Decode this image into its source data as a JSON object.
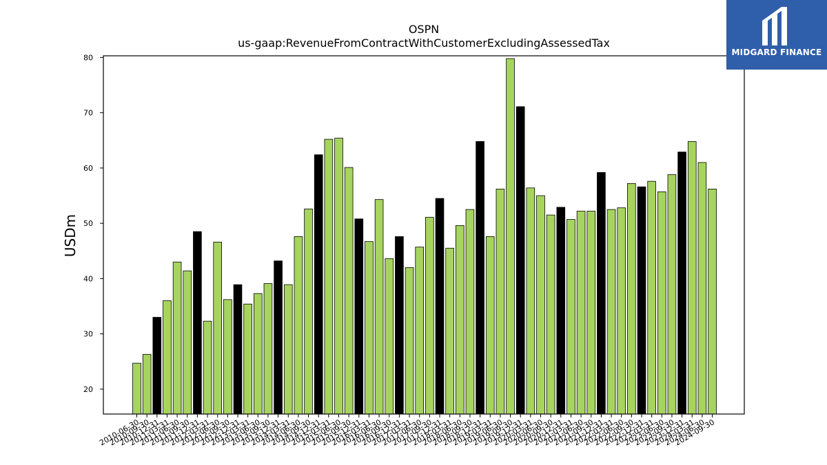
{
  "logo": {
    "text": "MIDGARD FINANCE",
    "bg_color": "#2f5eab"
  },
  "chart_data": {
    "type": "bar",
    "title": "OSPN",
    "subtitle": "us-gaap:RevenueFromContractWithCustomerExcludingAssessedTax",
    "ylabel": "USDm",
    "xlabel": "",
    "ylim": [
      15.5,
      80.3
    ],
    "yticks": [
      20,
      30,
      40,
      50,
      60,
      70,
      80
    ],
    "grid": false,
    "colors": {
      "quarter": "#a6d45f",
      "fiscal_year_end": "#000000",
      "edge": "#000000"
    },
    "tick_labels_shown": [
      "2010-06-30",
      "2010-09-30",
      "2010-12-31",
      "2011-03-31",
      "2011-06-30",
      "2011-09-30",
      "2011-12-31",
      "2012-03-31",
      "2012-06-30",
      "2012-09-30",
      "2012-12-31",
      "2013-03-31",
      "2013-06-30",
      "2013-09-30",
      "2013-12-31",
      "2014-03-31",
      "2014-06-30",
      "2014-09-30",
      "2014-12-31",
      "2015-03-31",
      "2015-06-30",
      "2015-09-30",
      "2015-12-31",
      "2016-03-31",
      "2016-06-30",
      "2016-09-30",
      "2016-12-31",
      "2017-03-31",
      "2017-06-30",
      "2017-09-30",
      "2017-12-31",
      "2018-03-31",
      "2018-06-30",
      "2018-09-30",
      "2018-12-31",
      "2019-03-31",
      "2019-06-30",
      "2019-09-30",
      "2019-12-31",
      "2020-03-31",
      "2020-06-30",
      "2020-09-30",
      "2020-12-31",
      "2021-03-31",
      "2021-06-30",
      "2021-09-30",
      "2021-12-31",
      "2022-03-31",
      "2022-06-30",
      "2022-09-30",
      "2022-12-31",
      "2023-03-31",
      "2023-06-30",
      "2023-09-30",
      "2023-12-31",
      "2024-03-31",
      "2024-06-30",
      "2024-09-30"
    ],
    "values": [
      24.7,
      26.3,
      33.0,
      36.0,
      43.0,
      41.4,
      48.5,
      32.3,
      46.6,
      36.2,
      38.9,
      35.4,
      37.3,
      39.1,
      43.2,
      38.9,
      47.6,
      52.6,
      62.4,
      65.2,
      65.4,
      60.1,
      50.8,
      46.7,
      54.3,
      43.6,
      47.6,
      42.0,
      45.7,
      51.1,
      54.5,
      45.5,
      49.6,
      52.5,
      64.8,
      47.6,
      56.2,
      79.8,
      71.1,
      56.4,
      55.0,
      51.5,
      52.9,
      50.7,
      52.2,
      52.2,
      59.2,
      52.5,
      52.8,
      57.2,
      56.6,
      57.6,
      55.7,
      58.8,
      62.9,
      64.8,
      61.0,
      56.2
    ],
    "highlight": [
      false,
      false,
      true,
      false,
      false,
      false,
      true,
      false,
      false,
      false,
      true,
      false,
      false,
      false,
      true,
      false,
      false,
      false,
      true,
      false,
      false,
      false,
      true,
      false,
      false,
      false,
      true,
      false,
      false,
      false,
      true,
      false,
      false,
      false,
      true,
      false,
      false,
      false,
      true,
      false,
      false,
      false,
      true,
      false,
      false,
      false,
      true,
      false,
      false,
      false,
      true,
      false,
      false,
      false,
      true,
      false,
      false,
      false
    ]
  }
}
